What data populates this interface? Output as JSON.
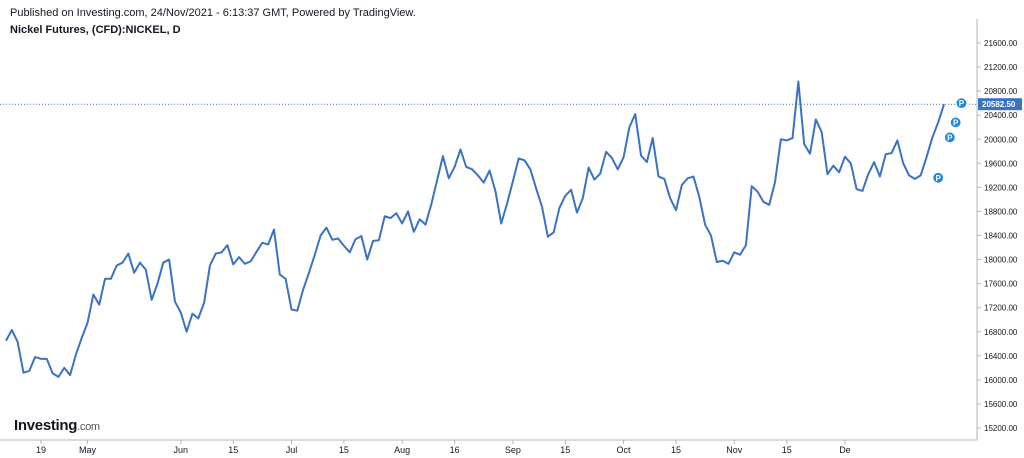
{
  "header": {
    "published": "Published on Investing.com, 24/Nov/2021 - 6:13:37 GMT, Powered by TradingView.",
    "symbol": "Nickel Futures, (CFD):NICKEL, D"
  },
  "logo": {
    "main": "Investing",
    "suffix": ".com"
  },
  "colors": {
    "line": "#3a72c4",
    "badge": "#3a72c4",
    "marker": "#1e88e5",
    "axis": "#b2b5be"
  },
  "chart_data": {
    "type": "line",
    "title": "",
    "xlabel": "",
    "ylabel": "",
    "ylim": [
      15000,
      21800
    ],
    "y_ticks": [
      15200,
      15600,
      16000,
      16400,
      16800,
      17200,
      17600,
      18000,
      18400,
      18800,
      19200,
      19600,
      20000,
      20400,
      20800,
      21200,
      21600
    ],
    "y_tick_labels": [
      "15200.00",
      "15600.00",
      "16000.00",
      "16400.00",
      "16800.00",
      "17200.00",
      "17600.00",
      "18000.00",
      "18400.00",
      "18800.00",
      "19200.00",
      "19600.00",
      "20000.00",
      "20400.00",
      "20800.00",
      "21200.00",
      "21600.00"
    ],
    "x_ticks": [
      {
        "label": "19",
        "index": 6
      },
      {
        "label": "May",
        "index": 14
      },
      {
        "label": "Jun",
        "index": 30
      },
      {
        "label": "15",
        "index": 39
      },
      {
        "label": "Jul",
        "index": 49
      },
      {
        "label": "15",
        "index": 58
      },
      {
        "label": "Aug",
        "index": 68
      },
      {
        "label": "16",
        "index": 77
      },
      {
        "label": "Sep",
        "index": 87
      },
      {
        "label": "15",
        "index": 96
      },
      {
        "label": "Oct",
        "index": 106
      },
      {
        "label": "15",
        "index": 115
      },
      {
        "label": "Nov",
        "index": 125
      },
      {
        "label": "15",
        "index": 134
      },
      {
        "label": "De",
        "index": 144
      }
    ],
    "last_value": "20582.50",
    "last_value_num": 20582.5,
    "grid": false,
    "series": [
      {
        "values": [
          16650,
          16830,
          16630,
          16120,
          16150,
          16380,
          16350,
          16350,
          16110,
          16050,
          16200,
          16080,
          16420,
          16700,
          16950,
          17420,
          17250,
          17680,
          17680,
          17900,
          17950,
          18100,
          17780,
          17950,
          17830,
          17330,
          17600,
          17950,
          18000,
          17300,
          17120,
          16800,
          17100,
          17020,
          17280,
          17900,
          18100,
          18120,
          18240,
          17920,
          18040,
          17930,
          17970,
          18130,
          18280,
          18250,
          18500,
          17750,
          17680,
          17170,
          17150,
          17500,
          17780,
          18080,
          18400,
          18530,
          18330,
          18350,
          18230,
          18120,
          18340,
          18390,
          18000,
          18310,
          18320,
          18720,
          18690,
          18770,
          18600,
          18800,
          18460,
          18670,
          18580,
          18920,
          19320,
          19720,
          19350,
          19540,
          19830,
          19540,
          19500,
          19400,
          19280,
          19480,
          19140,
          18600,
          18930,
          19300,
          19680,
          19650,
          19500,
          19180,
          18880,
          18380,
          18450,
          18860,
          19060,
          19160,
          18780,
          19020,
          19530,
          19330,
          19430,
          19790,
          19690,
          19500,
          19700,
          20200,
          20420,
          19730,
          19620,
          20020,
          19380,
          19340,
          19020,
          18820,
          19240,
          19350,
          19380,
          19040,
          18580,
          18400,
          17960,
          17980,
          17930,
          18120,
          18080,
          18240,
          19220,
          19130,
          18960,
          18910,
          19290,
          20000,
          19980,
          20020,
          20960,
          19920,
          19760,
          20330,
          20120,
          19420,
          19560,
          19450,
          19710,
          19600,
          19170,
          19140,
          19420,
          19620,
          19380,
          19750,
          19770,
          19980,
          19600,
          19400,
          19340,
          19400,
          19700,
          20030,
          20280,
          20580
        ]
      }
    ],
    "markers": [
      {
        "label": "P",
        "index": 160,
        "value": 19360
      },
      {
        "label": "P",
        "index": 162,
        "value": 20030
      },
      {
        "label": "P",
        "index": 163,
        "value": 20280
      },
      {
        "label": "P",
        "index": 164,
        "value": 20600
      }
    ]
  }
}
